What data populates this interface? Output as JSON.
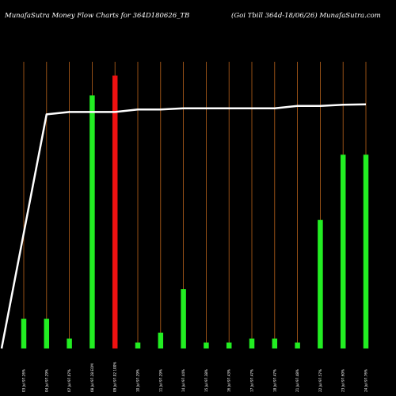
{
  "header": {
    "left_title": "MunafaSutra  Money Flow  Charts for 364D180626_TB",
    "right_title": "(Goi   Tbill 364d-18/06/26) MunafaSutra.com"
  },
  "colors": {
    "background": "#000000",
    "up_bar": "#22ee22",
    "down_bar": "#ee1111",
    "gridline": "#b8621b",
    "price_line": "#ffffff"
  },
  "chart_data": {
    "type": "bar",
    "title": "MunafaSutra  Money Flow  Charts for 364D180626_TB",
    "subtitle": "(Goi   Tbill 364d-18/06/26) MunafaSutra.com",
    "categories": [
      "03 Jul 97.26%",
      "04 Jul 97.29%",
      "07 Jul 97.07%",
      "08 Jul 97.28 EOM",
      "09 Jul 97.02 100%",
      "10 Jul 97.29%",
      "11 Jul 97.29%",
      "14 Jul 97.44%",
      "15 Jul 97.38%",
      "16 Jul 97.43%",
      "17 Jul 97.47%",
      "18 Jul 97.47%",
      "21 Jul 97.48%",
      "22 Jul 97.57%",
      "23 Jul 97.60%",
      "24 Jul 97.76%"
    ],
    "series": [
      {
        "values": [
          15,
          15,
          5,
          128,
          138,
          3,
          8,
          30,
          3,
          3,
          5,
          5,
          3,
          65,
          98,
          98
        ],
        "directions": [
          "up",
          "up",
          "up",
          "up",
          "down",
          "up",
          "up",
          "up",
          "up",
          "up",
          "up",
          "up",
          "up",
          "up",
          "up",
          "up"
        ]
      }
    ],
    "price_line": [
      0,
      98,
      99,
      99,
      99,
      100,
      100,
      100.5,
      100.5,
      100.5,
      100.5,
      100.5,
      101.5,
      101.5,
      102,
      102.2
    ],
    "volume_range": [
      0,
      145
    ],
    "price_range": [
      0,
      120
    ],
    "grid": true
  }
}
